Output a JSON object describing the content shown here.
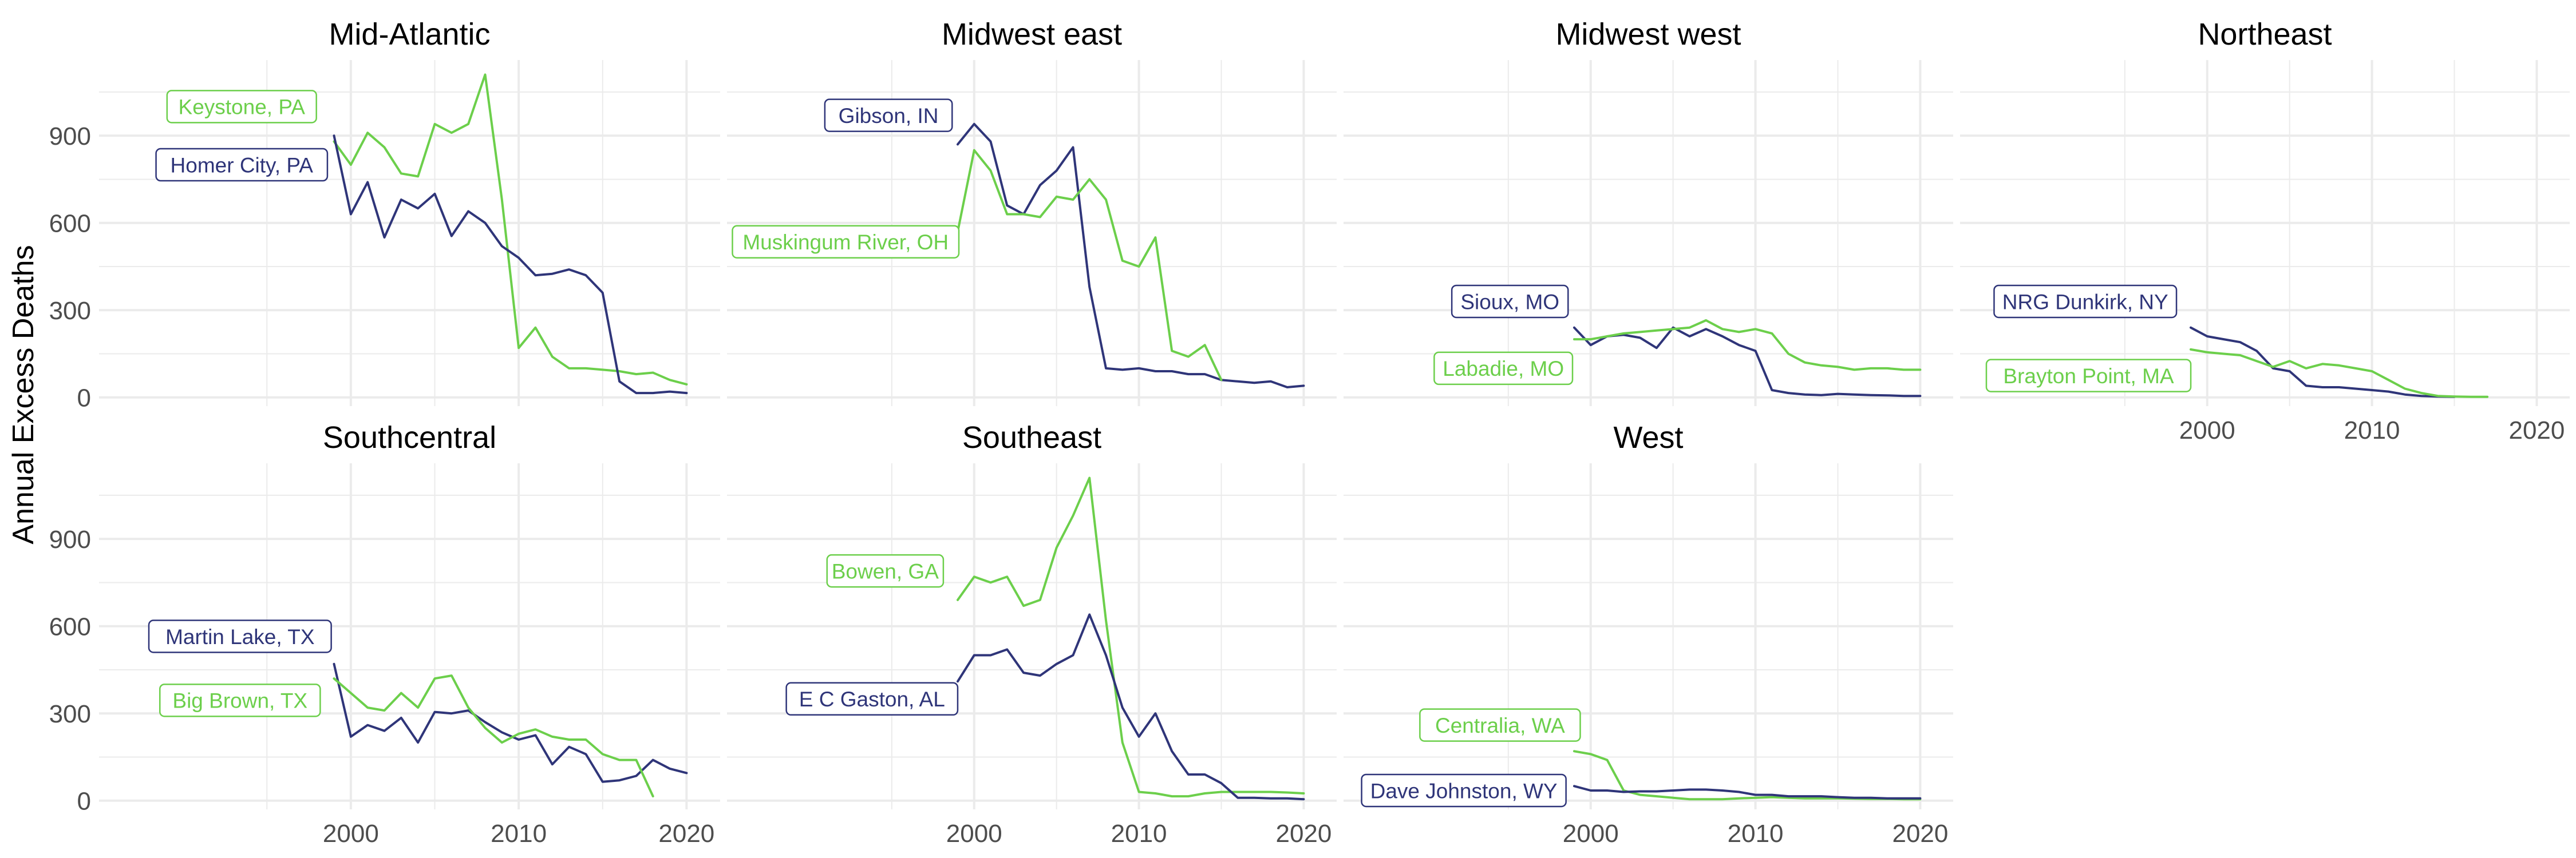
{
  "ylabel": "Annual Excess Deaths",
  "colors": {
    "green": "#6ccf4b",
    "navy": "#2f3579",
    "grid": "#ebebeb",
    "tick": "#4d4d4d"
  },
  "chart_data": {
    "type": "line",
    "layout": "facet-grid 2 rows x 4 cols",
    "ylabel": "Annual Excess Deaths",
    "xlabel": "",
    "xlim": [
      1985,
      2022
    ],
    "ylim": [
      -30,
      1160
    ],
    "x_ticks": [
      2000,
      2010,
      2020
    ],
    "y_ticks": [
      0,
      300,
      600,
      900
    ],
    "grid": true,
    "panels": [
      {
        "title": "Mid-Atlantic",
        "series": [
          {
            "name": "Keystone, PA",
            "color": "green",
            "label_x": 1993.5,
            "label_y": 1000,
            "x": [
              1999,
              2000,
              2001,
              2002,
              2003,
              2004,
              2005,
              2006,
              2007,
              2008,
              2009,
              2010,
              2011,
              2012,
              2013,
              2014,
              2015,
              2016,
              2017,
              2018,
              2019,
              2020
            ],
            "values": [
              880,
              800,
              910,
              860,
              770,
              760,
              940,
              910,
              940,
              1110,
              680,
              170,
              240,
              140,
              100,
              100,
              95,
              90,
              80,
              85,
              60,
              45
            ]
          },
          {
            "name": "Homer City, PA",
            "color": "navy",
            "label_x": 1993.5,
            "label_y": 800,
            "x": [
              1999,
              2000,
              2001,
              2002,
              2003,
              2004,
              2005,
              2006,
              2007,
              2008,
              2009,
              2010,
              2011,
              2012,
              2013,
              2014,
              2015,
              2016,
              2017,
              2018,
              2019,
              2020
            ],
            "values": [
              900,
              630,
              740,
              550,
              680,
              650,
              700,
              555,
              640,
              600,
              520,
              480,
              420,
              425,
              440,
              420,
              360,
              55,
              15,
              15,
              20,
              15
            ]
          }
        ]
      },
      {
        "title": "Midwest east",
        "series": [
          {
            "name": "Gibson, IN",
            "color": "navy",
            "label_x": 1994.8,
            "label_y": 970,
            "x": [
              1999,
              2000,
              2001,
              2002,
              2003,
              2004,
              2005,
              2006,
              2007,
              2008,
              2009,
              2010,
              2011,
              2012,
              2013,
              2014,
              2015,
              2016,
              2017,
              2018,
              2019,
              2020
            ],
            "values": [
              870,
              940,
              880,
              660,
              630,
              730,
              780,
              860,
              380,
              100,
              95,
              100,
              90,
              90,
              80,
              80,
              60,
              55,
              50,
              55,
              35,
              40
            ]
          },
          {
            "name": "Muskingum River, OH",
            "color": "green",
            "label_x": 1992.2,
            "label_y": 535,
            "x": [
              1999,
              2000,
              2001,
              2002,
              2003,
              2004,
              2005,
              2006,
              2007,
              2008,
              2009,
              2010,
              2011,
              2012,
              2013,
              2014,
              2015
            ],
            "values": [
              570,
              850,
              780,
              630,
              630,
              620,
              690,
              680,
              750,
              680,
              470,
              450,
              550,
              160,
              140,
              180,
              60
            ]
          }
        ]
      },
      {
        "title": "Midwest west",
        "series": [
          {
            "name": "Sioux, MO",
            "color": "navy",
            "label_x": 1995.1,
            "label_y": 330,
            "x": [
              1999,
              2000,
              2001,
              2002,
              2003,
              2004,
              2005,
              2006,
              2007,
              2008,
              2009,
              2010,
              2011,
              2012,
              2013,
              2014,
              2015,
              2016,
              2017,
              2018,
              2019,
              2020
            ],
            "values": [
              240,
              180,
              210,
              215,
              205,
              170,
              240,
              210,
              235,
              210,
              180,
              160,
              25,
              15,
              10,
              8,
              12,
              10,
              8,
              7,
              5,
              5
            ]
          },
          {
            "name": "Labadie, MO",
            "color": "green",
            "label_x": 1994.7,
            "label_y": 100,
            "x": [
              1999,
              2000,
              2001,
              2002,
              2003,
              2004,
              2005,
              2006,
              2007,
              2008,
              2009,
              2010,
              2011,
              2012,
              2013,
              2014,
              2015,
              2016,
              2017,
              2018,
              2019,
              2020
            ],
            "values": [
              200,
              200,
              210,
              220,
              225,
              230,
              235,
              240,
              265,
              235,
              225,
              235,
              220,
              150,
              120,
              110,
              105,
              95,
              100,
              100,
              95,
              95
            ]
          }
        ]
      },
      {
        "title": "Northeast",
        "series": [
          {
            "name": "NRG Dunkirk, NY",
            "color": "navy",
            "label_x": 1992.6,
            "label_y": 330,
            "x": [
              1999,
              2000,
              2001,
              2002,
              2003,
              2004,
              2005,
              2006,
              2007,
              2008,
              2009,
              2010,
              2011,
              2012,
              2013,
              2014,
              2015
            ],
            "values": [
              240,
              210,
              200,
              190,
              160,
              100,
              90,
              40,
              35,
              35,
              30,
              25,
              20,
              10,
              5,
              3,
              2
            ]
          },
          {
            "name": "Brayton Point, MA",
            "color": "green",
            "label_x": 1992.8,
            "label_y": 75,
            "x": [
              1999,
              2000,
              2001,
              2002,
              2003,
              2004,
              2005,
              2006,
              2007,
              2008,
              2009,
              2010,
              2011,
              2012,
              2013,
              2014,
              2015,
              2016,
              2017
            ],
            "values": [
              165,
              155,
              150,
              145,
              125,
              105,
              125,
              100,
              115,
              110,
              100,
              90,
              60,
              30,
              15,
              5,
              3,
              2,
              2
            ]
          }
        ]
      },
      {
        "title": "Southcentral",
        "series": [
          {
            "name": "Martin Lake, TX",
            "color": "navy",
            "label_x": 1993.4,
            "label_y": 565,
            "x": [
              1999,
              2000,
              2001,
              2002,
              2003,
              2004,
              2005,
              2006,
              2007,
              2008,
              2009,
              2010,
              2011,
              2012,
              2013,
              2014,
              2015,
              2016,
              2017,
              2018,
              2019,
              2020
            ],
            "values": [
              470,
              220,
              260,
              240,
              285,
              200,
              305,
              300,
              310,
              270,
              235,
              210,
              225,
              125,
              185,
              160,
              65,
              70,
              85,
              140,
              110,
              95
            ]
          },
          {
            "name": "Big Brown, TX",
            "color": "green",
            "label_x": 1993.4,
            "label_y": 345,
            "x": [
              1999,
              2000,
              2001,
              2002,
              2003,
              2004,
              2005,
              2006,
              2007,
              2008,
              2009,
              2010,
              2011,
              2012,
              2013,
              2014,
              2015,
              2016,
              2017,
              2018
            ],
            "values": [
              420,
              370,
              320,
              310,
              370,
              320,
              420,
              430,
              320,
              250,
              200,
              230,
              245,
              220,
              210,
              210,
              160,
              140,
              140,
              15
            ]
          }
        ]
      },
      {
        "title": "Southeast",
        "series": [
          {
            "name": "Bowen, GA",
            "color": "green",
            "label_x": 1994.6,
            "label_y": 790,
            "x": [
              1999,
              2000,
              2001,
              2002,
              2003,
              2004,
              2005,
              2006,
              2007,
              2008,
              2009,
              2010,
              2011,
              2012,
              2013,
              2014,
              2015,
              2016,
              2017,
              2018,
              2019,
              2020
            ],
            "values": [
              690,
              770,
              750,
              770,
              670,
              690,
              870,
              980,
              1110,
              620,
              200,
              30,
              25,
              15,
              15,
              25,
              30,
              30,
              30,
              30,
              28,
              25
            ]
          },
          {
            "name": "E C Gaston, AL",
            "color": "navy",
            "label_x": 1993.8,
            "label_y": 350,
            "x": [
              1999,
              2000,
              2001,
              2002,
              2003,
              2004,
              2005,
              2006,
              2007,
              2008,
              2009,
              2010,
              2011,
              2012,
              2013,
              2014,
              2015,
              2016,
              2017,
              2018,
              2019,
              2020
            ],
            "values": [
              410,
              500,
              500,
              520,
              440,
              430,
              470,
              500,
              640,
              500,
              320,
              220,
              300,
              170,
              90,
              90,
              60,
              10,
              10,
              8,
              8,
              5
            ]
          }
        ]
      },
      {
        "title": "West",
        "series": [
          {
            "name": "Centralia, WA",
            "color": "green",
            "label_x": 1994.5,
            "label_y": 260,
            "x": [
              1999,
              2000,
              2001,
              2002,
              2003,
              2004,
              2005,
              2006,
              2007,
              2008,
              2009,
              2010,
              2011,
              2012,
              2013,
              2014,
              2015,
              2016,
              2017,
              2018,
              2019,
              2020
            ],
            "values": [
              170,
              160,
              140,
              35,
              20,
              15,
              10,
              5,
              5,
              5,
              8,
              10,
              12,
              10,
              8,
              8,
              8,
              7,
              6,
              6,
              5,
              5
            ]
          },
          {
            "name": "Dave Johnston, WY",
            "color": "navy",
            "label_x": 1992.3,
            "label_y": 35,
            "x": [
              1999,
              2000,
              2001,
              2002,
              2003,
              2004,
              2005,
              2006,
              2007,
              2008,
              2009,
              2010,
              2011,
              2012,
              2013,
              2014,
              2015,
              2016,
              2017,
              2018,
              2019,
              2020
            ],
            "values": [
              50,
              35,
              35,
              30,
              32,
              32,
              35,
              38,
              38,
              35,
              30,
              20,
              20,
              15,
              15,
              15,
              12,
              10,
              10,
              8,
              8,
              8
            ]
          }
        ]
      }
    ]
  }
}
